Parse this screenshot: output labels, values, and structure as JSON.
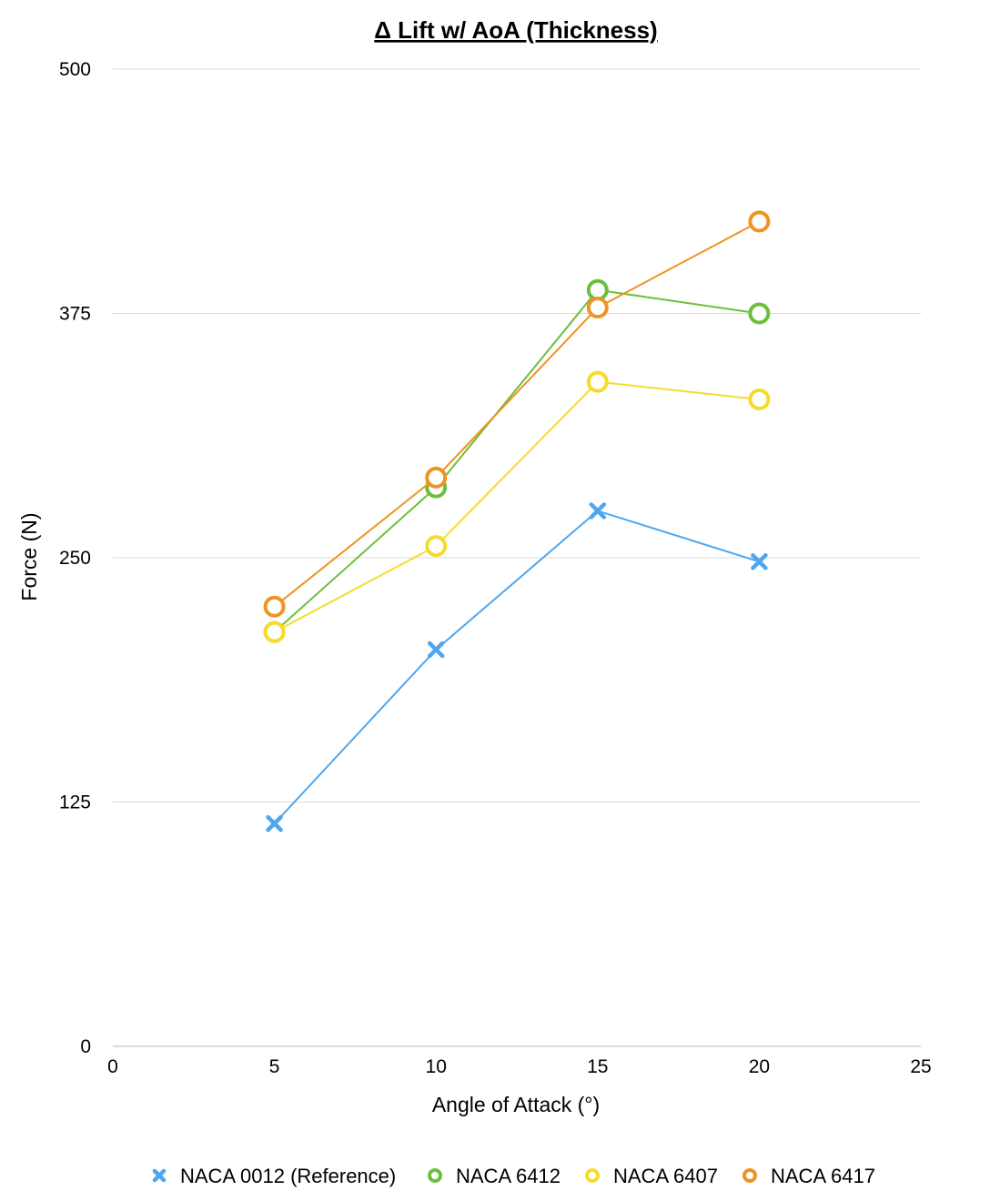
{
  "chart_data": {
    "type": "line",
    "title": "Δ Lift w/ AoA (Thickness)",
    "xlabel": "Angle of Attack (°)",
    "ylabel": "Force (N)",
    "xlim": [
      0,
      25
    ],
    "ylim": [
      0,
      500
    ],
    "xticks": [
      "0",
      "5",
      "10",
      "15",
      "20",
      "25"
    ],
    "yticks": [
      "0",
      "125",
      "250",
      "375",
      "500"
    ],
    "grid": "horizontal",
    "legend_position": "bottom",
    "series": [
      {
        "name": "NACA 0012 (Reference)",
        "color": "#4da6f0",
        "marker": "x",
        "x": [
          5,
          10,
          15,
          20
        ],
        "y": [
          114,
          203,
          274,
          248
        ]
      },
      {
        "name": "NACA 6412",
        "color": "#6cbf3c",
        "marker": "circle",
        "x": [
          5,
          10,
          15,
          20
        ],
        "y": [
          212,
          286,
          387,
          375
        ]
      },
      {
        "name": "NACA 6407",
        "color": "#f4dc2c",
        "marker": "circle",
        "x": [
          5,
          10,
          15,
          20
        ],
        "y": [
          212,
          256,
          340,
          331
        ]
      },
      {
        "name": "NACA 6417",
        "color": "#ef9322",
        "marker": "circle",
        "x": [
          5,
          10,
          15,
          20
        ],
        "y": [
          225,
          291,
          378,
          422
        ]
      }
    ]
  }
}
